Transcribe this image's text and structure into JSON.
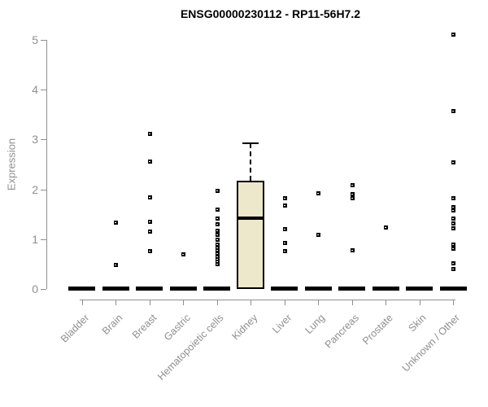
{
  "chart_data": {
    "type": "boxplot",
    "title": "ENSG00000230112 - RP11-56H7.2",
    "ylabel": "Expression",
    "xlabel": "",
    "ylim": [
      0,
      5
    ],
    "yticks": [
      0,
      1,
      2,
      3,
      4,
      5
    ],
    "grid": false,
    "legend": false,
    "colors": {
      "box_fill": "#EDE7CB",
      "box_border": "#000000",
      "point": "#000000",
      "axis": "#8F8F8F",
      "title": "#000000"
    },
    "categories": [
      "Bladder",
      "Brain",
      "Breast",
      "Gastric",
      "Hematopoietic cells",
      "Kidney",
      "Liver",
      "Lung",
      "Pancreas",
      "Prostate",
      "Skin",
      "Unknown / Other"
    ],
    "boxes": [
      {
        "category": "Bladder",
        "q1": 0,
        "median": 0,
        "q3": 0,
        "whisker_low": 0,
        "whisker_high": 0,
        "outliers": []
      },
      {
        "category": "Brain",
        "q1": 0,
        "median": 0,
        "q3": 0,
        "whisker_low": 0,
        "whisker_high": 0,
        "outliers": [
          1.34,
          0.49
        ]
      },
      {
        "category": "Breast",
        "q1": 0,
        "median": 0,
        "q3": 0,
        "whisker_low": 0,
        "whisker_high": 0,
        "outliers": [
          3.12,
          2.57,
          1.85,
          1.36,
          1.16,
          0.77
        ]
      },
      {
        "category": "Gastric",
        "q1": 0,
        "median": 0,
        "q3": 0,
        "whisker_low": 0,
        "whisker_high": 0,
        "outliers": [
          0.7
        ]
      },
      {
        "category": "Hematopoietic cells",
        "q1": 0,
        "median": 0,
        "q3": 0,
        "whisker_low": 0,
        "whisker_high": 0,
        "outliers": [
          1.97,
          1.6,
          1.42,
          1.3,
          1.18,
          1.1,
          1.0,
          0.9,
          0.84,
          0.78,
          0.72,
          0.66,
          0.6,
          0.55,
          0.5
        ]
      },
      {
        "category": "Kidney",
        "q1": 0,
        "median": 1.42,
        "q3": 2.17,
        "whisker_low": 0,
        "whisker_high": 2.92,
        "outliers": []
      },
      {
        "category": "Liver",
        "q1": 0,
        "median": 0,
        "q3": 0,
        "whisker_low": 0,
        "whisker_high": 0,
        "outliers": [
          1.83,
          1.69,
          1.21,
          0.93,
          0.77
        ]
      },
      {
        "category": "Lung",
        "q1": 0,
        "median": 0,
        "q3": 0,
        "whisker_low": 0,
        "whisker_high": 0,
        "outliers": [
          1.93,
          1.1
        ]
      },
      {
        "category": "Pancreas",
        "q1": 0,
        "median": 0,
        "q3": 0,
        "whisker_low": 0,
        "whisker_high": 0,
        "outliers": [
          2.09,
          1.91,
          1.83,
          0.78
        ]
      },
      {
        "category": "Prostate",
        "q1": 0,
        "median": 0,
        "q3": 0,
        "whisker_low": 0,
        "whisker_high": 0,
        "outliers": [
          1.24
        ]
      },
      {
        "category": "Skin",
        "q1": 0,
        "median": 0,
        "q3": 0,
        "whisker_low": 0,
        "whisker_high": 0,
        "outliers": []
      },
      {
        "category": "Unknown / Other",
        "q1": 0,
        "median": 0,
        "q3": 0,
        "whisker_low": 0,
        "whisker_high": 0,
        "outliers": [
          5.12,
          3.58,
          2.55,
          1.83,
          1.65,
          1.58,
          1.42,
          1.33,
          1.23,
          0.9,
          0.82,
          0.52,
          0.41
        ]
      }
    ]
  }
}
